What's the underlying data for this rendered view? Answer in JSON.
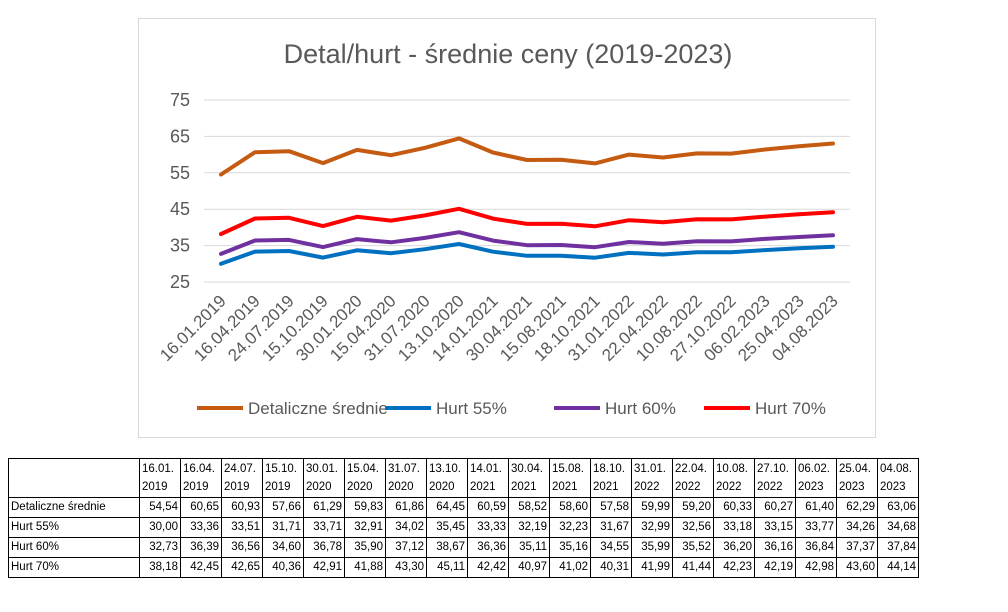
{
  "chart_data": {
    "type": "line",
    "title": "Detal/hurt - średnie ceny  (2019-2023)",
    "xlabel": "",
    "ylabel": "",
    "ylim": [
      25,
      75
    ],
    "yticks": [
      25,
      35,
      45,
      55,
      65,
      75
    ],
    "grid": true,
    "legend_position": "bottom",
    "categories": [
      "16.01.2019",
      "16.04.2019",
      "24.07.2019",
      "15.10.2019",
      "30.01.2020",
      "15.04.2020",
      "31.07.2020",
      "13.10.2020",
      "14.01.2021",
      "30.04.2021",
      "15.08.2021",
      "18.10.2021",
      "31.01.2022",
      "22.04.2022",
      "10.08.2022",
      "27.10.2022",
      "06.02.2023",
      "25.04.2023",
      "04.08.2023"
    ],
    "table_header_lines": [
      [
        "16.01.",
        "2019"
      ],
      [
        "16.04.",
        "2019"
      ],
      [
        "24.07.",
        "2019"
      ],
      [
        "15.10.",
        "2019"
      ],
      [
        "30.01.",
        "2020"
      ],
      [
        "15.04.",
        "2020"
      ],
      [
        "31.07.",
        "2020"
      ],
      [
        "13.10.",
        "2020"
      ],
      [
        "14.01.",
        "2021"
      ],
      [
        "30.04.",
        "2021"
      ],
      [
        "15.08.",
        "2021"
      ],
      [
        "18.10.",
        "2021"
      ],
      [
        "31.01.",
        "2022"
      ],
      [
        "22.04.",
        "2022"
      ],
      [
        "10.08.",
        "2022"
      ],
      [
        "27.10.",
        "2022"
      ],
      [
        "06.02.",
        "2023"
      ],
      [
        "25.04.",
        "2023"
      ],
      [
        "04.08.",
        "2023"
      ]
    ],
    "series": [
      {
        "name": "Detaliczne średnie",
        "color": "#C55A11",
        "values": [
          54.54,
          60.65,
          60.93,
          57.66,
          61.29,
          59.83,
          61.86,
          64.45,
          60.59,
          58.52,
          58.6,
          57.58,
          59.99,
          59.2,
          60.33,
          60.27,
          61.4,
          62.29,
          63.06
        ],
        "labels": [
          "54,54",
          "60,65",
          "60,93",
          "57,66",
          "61,29",
          "59,83",
          "61,86",
          "64,45",
          "60,59",
          "58,52",
          "58,60",
          "57,58",
          "59,99",
          "59,20",
          "60,33",
          "60,27",
          "61,40",
          "62,29",
          "63,06"
        ]
      },
      {
        "name": "Hurt 55%",
        "color": "#0070C0",
        "values": [
          30.0,
          33.36,
          33.51,
          31.71,
          33.71,
          32.91,
          34.02,
          35.45,
          33.33,
          32.19,
          32.23,
          31.67,
          32.99,
          32.56,
          33.18,
          33.15,
          33.77,
          34.26,
          34.68
        ],
        "labels": [
          "30,00",
          "33,36",
          "33,51",
          "31,71",
          "33,71",
          "32,91",
          "34,02",
          "35,45",
          "33,33",
          "32,19",
          "32,23",
          "31,67",
          "32,99",
          "32,56",
          "33,18",
          "33,15",
          "33,77",
          "34,26",
          "34,68"
        ]
      },
      {
        "name": "Hurt 60%",
        "color": "#7030A0",
        "values": [
          32.73,
          36.39,
          36.56,
          34.6,
          36.78,
          35.9,
          37.12,
          38.67,
          36.36,
          35.11,
          35.16,
          34.55,
          35.99,
          35.52,
          36.2,
          36.16,
          36.84,
          37.37,
          37.84
        ],
        "labels": [
          "32,73",
          "36,39",
          "36,56",
          "34,60",
          "36,78",
          "35,90",
          "37,12",
          "38,67",
          "36,36",
          "35,11",
          "35,16",
          "34,55",
          "35,99",
          "35,52",
          "36,20",
          "36,16",
          "36,84",
          "37,37",
          "37,84"
        ]
      },
      {
        "name": "Hurt 70%",
        "color": "#FF0000",
        "values": [
          38.18,
          42.45,
          42.65,
          40.36,
          42.91,
          41.88,
          43.3,
          45.11,
          42.42,
          40.97,
          41.02,
          40.31,
          41.99,
          41.44,
          42.23,
          42.19,
          42.98,
          43.6,
          44.14
        ],
        "labels": [
          "38,18",
          "42,45",
          "42,65",
          "40,36",
          "42,91",
          "41,88",
          "43,30",
          "45,11",
          "42,42",
          "40,97",
          "41,02",
          "40,31",
          "41,99",
          "41,44",
          "42,23",
          "42,19",
          "42,98",
          "43,60",
          "44,14"
        ]
      }
    ]
  }
}
